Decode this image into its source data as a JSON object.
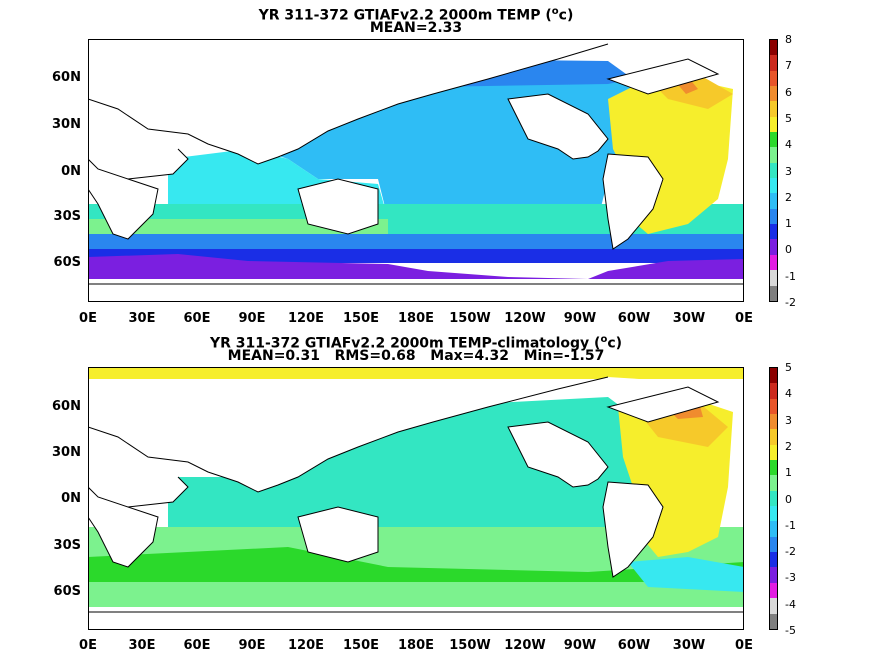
{
  "top": {
    "title_prefix": "YR 311-372 GTIAFv2.2 2000m TEMP (",
    "title_sup": "o",
    "title_suffix": "c)",
    "stats": "MEAN=2.33",
    "colorbar_labels": [
      "8",
      "7",
      "6",
      "5",
      "4",
      "3",
      "2",
      "1",
      "0",
      "-1",
      "-2"
    ],
    "colorbar_colors": [
      "#8b0000",
      "#cc2a1e",
      "#e8552a",
      "#f08c2e",
      "#f6c92a",
      "#f6ee2c",
      "#2bd92b",
      "#7cf28e",
      "#33e6c2",
      "#37e8f0",
      "#2fbdf5",
      "#2a86ef",
      "#1a2ee6",
      "#7b1fe0",
      "#e21de2",
      "#d9d9d9",
      "#7f7f7f"
    ]
  },
  "bottom": {
    "title_prefix": "YR 311-372 GTIAFv2.2 2000m TEMP-climatology (",
    "title_sup": "o",
    "title_suffix": "c)",
    "stats": "MEAN=0.31   RMS=0.68   Max=4.32   Min=-1.57",
    "colorbar_labels": [
      "5",
      "4",
      "3",
      "2",
      "1",
      "0",
      "-1",
      "-2",
      "-3",
      "-4",
      "-5"
    ],
    "colorbar_colors": [
      "#8b0000",
      "#cc2a1e",
      "#e8552a",
      "#f08c2e",
      "#f6c92a",
      "#f6ee2c",
      "#2bd92b",
      "#7cf28e",
      "#33e6c2",
      "#37e8f0",
      "#2fbdf5",
      "#2a86ef",
      "#1a2ee6",
      "#7b1fe0",
      "#e21de2",
      "#d9d9d9",
      "#7f7f7f"
    ]
  },
  "lat_labels": [
    "60N",
    "30N",
    "0N",
    "30S",
    "60S"
  ],
  "lon_labels": [
    "0E",
    "30E",
    "60E",
    "90E",
    "120E",
    "150E",
    "180E",
    "150W",
    "120W",
    "90W",
    "60W",
    "30W",
    "0E"
  ]
}
